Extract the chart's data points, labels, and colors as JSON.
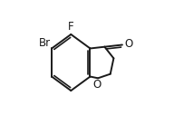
{
  "bg_color": "#ffffff",
  "line_color": "#1a1a1a",
  "line_width": 1.4,
  "font_size": 8.5,
  "atoms": {
    "F": "F",
    "Br": "Br",
    "O_ring": "O",
    "O_carbonyl": "O"
  }
}
